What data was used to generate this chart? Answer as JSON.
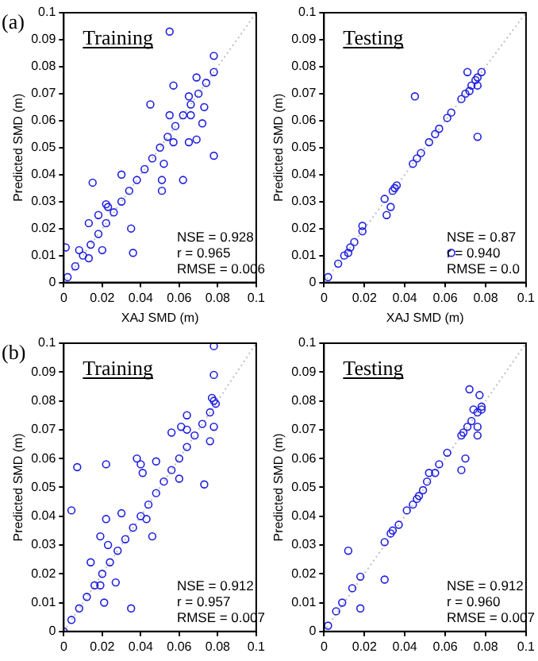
{
  "chart_data": [
    {
      "type": "scatter",
      "title": "Training",
      "subtitle": "(a)",
      "xlabel": "XAJ SMD (m)",
      "ylabel": "Predicted SMD (m)",
      "annotations": [
        "NSE = 0.928",
        "r = 0.965",
        "RMSE = 0.006"
      ],
      "xlim": [
        0,
        0.1
      ],
      "ylim": [
        0,
        0.1
      ],
      "xticks": [
        0,
        0.02,
        0.04,
        0.06,
        0.08,
        0.1
      ],
      "yticks": [
        0,
        0.01,
        0.02,
        0.03,
        0.04,
        0.05,
        0.06,
        0.07,
        0.08,
        0.09,
        0.1
      ],
      "grid": false,
      "legend": false,
      "marker": "circle",
      "series": [
        {
          "color": "#2020e0",
          "x": [
            0.002,
            0.006,
            0.01,
            0.014,
            0.018,
            0.022,
            0.026,
            0.03,
            0.034,
            0.038,
            0.042,
            0.046,
            0.05,
            0.054,
            0.058,
            0.062,
            0.066,
            0.07,
            0.074,
            0.078,
            0.055,
            0.078,
            0.069,
            0.057,
            0.065,
            0.073,
            0.045,
            0.055,
            0.066,
            0.072,
            0.065,
            0.069,
            0.057,
            0.078,
            0.052,
            0.051,
            0.051,
            0.062,
            0.03,
            0.015,
            0.022,
            0.023,
            0.018,
            0.013,
            0.035,
            0.036,
            0.02,
            0.013,
            0.001,
            0.008
          ],
          "values": [
            0.002,
            0.006,
            0.01,
            0.014,
            0.018,
            0.022,
            0.026,
            0.03,
            0.034,
            0.038,
            0.042,
            0.046,
            0.05,
            0.054,
            0.058,
            0.062,
            0.066,
            0.07,
            0.074,
            0.078,
            0.093,
            0.084,
            0.076,
            0.073,
            0.069,
            0.065,
            0.066,
            0.062,
            0.062,
            0.059,
            0.052,
            0.053,
            0.052,
            0.047,
            0.044,
            0.038,
            0.034,
            0.038,
            0.04,
            0.037,
            0.029,
            0.028,
            0.025,
            0.022,
            0.02,
            0.011,
            0.012,
            0.009,
            0.013,
            0.012
          ]
        },
        {
          "type": "line",
          "line_style": "dotted",
          "marker": "none",
          "color": "#c0c0c0",
          "x": [
            0,
            0.1
          ],
          "values": [
            0,
            0.1
          ]
        }
      ]
    },
    {
      "type": "scatter",
      "title": "Testing",
      "xlabel": "XAJ SMD (m)",
      "ylabel": "Predicted SMD (m)",
      "annotations": [
        "NSE = 0.87",
        "r = 0.940",
        "RMSE = 0.0"
      ],
      "xlim": [
        0,
        0.1
      ],
      "ylim": [
        0,
        0.1
      ],
      "xticks": [
        0,
        0.02,
        0.04,
        0.06,
        0.08,
        0.1
      ],
      "yticks": [
        0,
        0.01,
        0.02,
        0.03,
        0.04,
        0.05,
        0.06,
        0.07,
        0.08,
        0.09,
        0.1
      ],
      "grid": false,
      "legend": false,
      "marker": "circle",
      "series": [
        {
          "color": "#2020e0",
          "x": [
            0.002,
            0.007,
            0.01,
            0.012,
            0.013,
            0.015,
            0.019,
            0.019,
            0.03,
            0.031,
            0.033,
            0.034,
            0.035,
            0.036,
            0.044,
            0.045,
            0.046,
            0.048,
            0.052,
            0.055,
            0.057,
            0.061,
            0.063,
            0.063,
            0.068,
            0.07,
            0.071,
            0.072,
            0.073,
            0.075,
            0.076,
            0.076,
            0.076,
            0.078
          ],
          "values": [
            0.002,
            0.007,
            0.01,
            0.011,
            0.013,
            0.015,
            0.021,
            0.019,
            0.031,
            0.025,
            0.028,
            0.034,
            0.035,
            0.036,
            0.044,
            0.069,
            0.046,
            0.048,
            0.052,
            0.055,
            0.057,
            0.061,
            0.063,
            0.011,
            0.068,
            0.07,
            0.078,
            0.071,
            0.073,
            0.075,
            0.076,
            0.073,
            0.054,
            0.078
          ]
        },
        {
          "type": "line",
          "line_style": "dotted",
          "marker": "none",
          "color": "#c0c0c0",
          "x": [
            0,
            0.1
          ],
          "values": [
            0,
            0.1
          ]
        }
      ]
    },
    {
      "type": "scatter",
      "title": "Training",
      "subtitle": "(b)",
      "ylabel": "Predicted SMD (m)",
      "annotations": [
        "NSE = 0.912",
        "r = 0.957",
        "RMSE = 0.007"
      ],
      "xlim": [
        0,
        0.1
      ],
      "ylim": [
        0,
        0.1
      ],
      "xticks": [
        0,
        0.02,
        0.04,
        0.06,
        0.08,
        0.1
      ],
      "yticks": [
        0,
        0.01,
        0.02,
        0.03,
        0.04,
        0.05,
        0.06,
        0.07,
        0.08,
        0.09,
        0.1
      ],
      "grid": false,
      "legend": false,
      "marker": "circle",
      "series": [
        {
          "color": "#2020e0",
          "x": [
            0,
            0.004,
            0.008,
            0.012,
            0.016,
            0.02,
            0.024,
            0.028,
            0.032,
            0.036,
            0.04,
            0.044,
            0.048,
            0.052,
            0.056,
            0.06,
            0.064,
            0.068,
            0.072,
            0.076,
            0.079,
            0.078,
            0.078,
            0.077,
            0.078,
            0.064,
            0.061,
            0.064,
            0.056,
            0.078,
            0.076,
            0.038,
            0.048,
            0.04,
            0.022,
            0.007,
            0.041,
            0.06,
            0.073,
            0.004,
            0.03,
            0.043,
            0.022,
            0.019,
            0.046,
            0.023,
            0.014,
            0.027,
            0.019,
            0.021,
            0.035
          ],
          "values": [
            0,
            0.004,
            0.008,
            0.012,
            0.016,
            0.02,
            0.024,
            0.028,
            0.032,
            0.036,
            0.04,
            0.044,
            0.048,
            0.052,
            0.056,
            0.06,
            0.064,
            0.068,
            0.072,
            0.076,
            0.079,
            0.099,
            0.089,
            0.081,
            0.08,
            0.075,
            0.071,
            0.07,
            0.069,
            0.071,
            0.066,
            0.06,
            0.059,
            0.058,
            0.058,
            0.057,
            0.055,
            0.053,
            0.051,
            0.042,
            0.041,
            0.039,
            0.039,
            0.033,
            0.033,
            0.03,
            0.024,
            0.017,
            0.016,
            0.01,
            0.008
          ]
        },
        {
          "type": "line",
          "line_style": "dotted",
          "marker": "none",
          "color": "#c0c0c0",
          "x": [
            0,
            0.1
          ],
          "values": [
            0,
            0.1
          ]
        }
      ]
    },
    {
      "type": "scatter",
      "title": "Testing",
      "ylabel": "Predicted SMD (m)",
      "annotations": [
        "NSE = 0.912",
        "r = 0.960",
        "RMSE = 0.007"
      ],
      "xlim": [
        0,
        0.1
      ],
      "ylim": [
        0,
        0.1
      ],
      "xticks": [
        0,
        0.02,
        0.04,
        0.06,
        0.08,
        0.1
      ],
      "yticks": [
        0,
        0.01,
        0.02,
        0.03,
        0.04,
        0.05,
        0.06,
        0.07,
        0.08,
        0.09,
        0.1
      ],
      "grid": false,
      "legend": false,
      "marker": "circle",
      "series": [
        {
          "color": "#2020e0",
          "x": [
            0.002,
            0.006,
            0.009,
            0.012,
            0.014,
            0.018,
            0.018,
            0.03,
            0.03,
            0.033,
            0.034,
            0.037,
            0.041,
            0.044,
            0.046,
            0.047,
            0.049,
            0.051,
            0.052,
            0.055,
            0.057,
            0.061,
            0.068,
            0.068,
            0.07,
            0.069,
            0.071,
            0.072,
            0.073,
            0.074,
            0.076,
            0.076,
            0.076,
            0.077,
            0.078,
            0.078
          ],
          "values": [
            0.002,
            0.007,
            0.01,
            0.028,
            0.015,
            0.019,
            0.008,
            0.018,
            0.031,
            0.034,
            0.035,
            0.037,
            0.042,
            0.044,
            0.046,
            0.047,
            0.049,
            0.052,
            0.055,
            0.055,
            0.058,
            0.062,
            0.068,
            0.056,
            0.06,
            0.069,
            0.071,
            0.084,
            0.073,
            0.077,
            0.076,
            0.071,
            0.068,
            0.082,
            0.077,
            0.078
          ]
        },
        {
          "type": "line",
          "line_style": "dotted",
          "marker": "none",
          "color": "#c0c0c0",
          "x": [
            0,
            0.1
          ],
          "values": [
            0,
            0.1
          ]
        }
      ]
    }
  ]
}
